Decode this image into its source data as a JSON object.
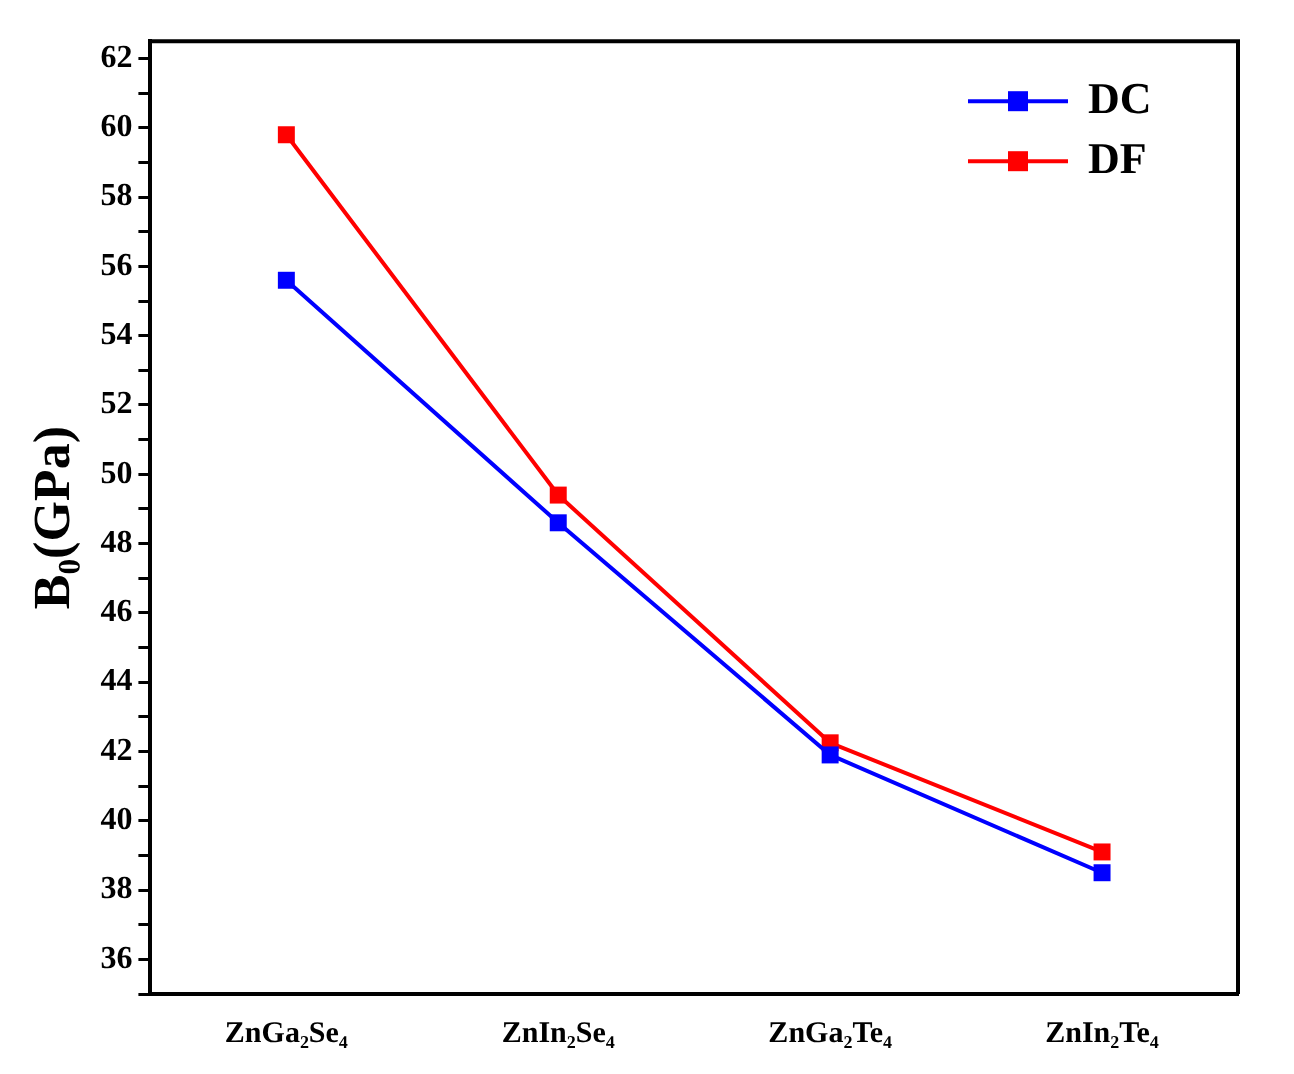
{
  "chart_data": {
    "type": "line",
    "ylabel": "B₀(GPa)",
    "categories": [
      "ZnGa₂Se₄",
      "ZnIn₂Se₄",
      "ZnGa₂Te₄",
      "ZnIn₂Te₄"
    ],
    "series": [
      {
        "name": "DC",
        "color": "#0000ff",
        "values": [
          55.6,
          48.6,
          41.9,
          38.5
        ]
      },
      {
        "name": "DF",
        "color": "#ff0000",
        "values": [
          59.8,
          49.4,
          42.25,
          39.1
        ]
      }
    ],
    "ylim": [
      35,
      62.5
    ],
    "yticks": [
      {
        "value": 35,
        "label": null
      },
      36,
      {
        "value": 37,
        "label": null
      },
      38,
      {
        "value": 39,
        "label": null
      },
      40,
      {
        "value": 41,
        "label": null
      },
      42,
      {
        "value": 43,
        "label": null
      },
      44,
      {
        "value": 45,
        "label": null
      },
      46,
      {
        "value": 47,
        "label": null
      },
      48,
      {
        "value": 49,
        "label": null
      },
      50,
      {
        "value": 51,
        "label": null
      },
      52,
      {
        "value": 53,
        "label": null
      },
      54,
      {
        "value": 55,
        "label": null
      },
      56,
      {
        "value": 57,
        "label": null
      },
      58,
      {
        "value": 59,
        "label": null
      },
      60,
      {
        "value": 61,
        "label": null
      },
      62
    ],
    "grid": false,
    "legend": "top right",
    "marker": "square",
    "line_style": "solid"
  }
}
